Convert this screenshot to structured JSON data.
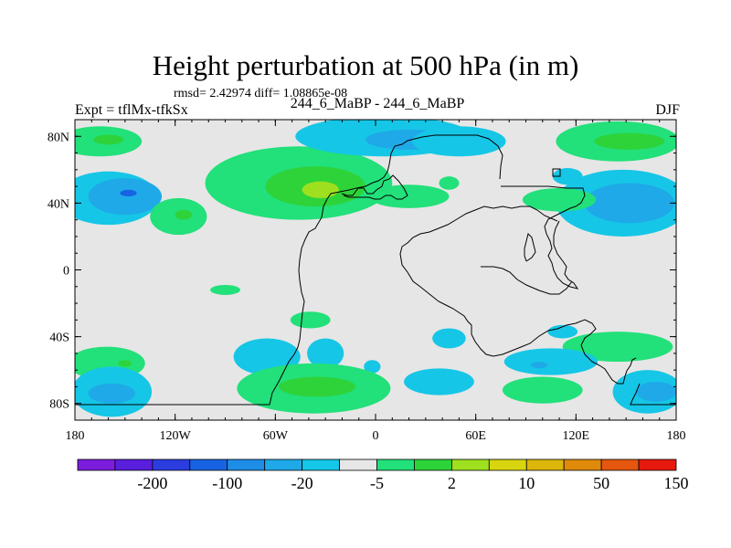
{
  "chart_data": {
    "type": "heatmap",
    "title": "Height perturbation at 500 hPa (in m)",
    "stats": "rmsd= 2.42974 diff= 1.08865e-08",
    "left_label": "Expt = tflMx-tfkSx",
    "center_label": "244_6_MaBP - 244_6_MaBP",
    "right_label": "DJF",
    "x_range": [
      -180,
      180
    ],
    "y_range": [
      -90,
      90
    ],
    "x_ticks": [
      {
        "value": -180,
        "label": "180"
      },
      {
        "value": -120,
        "label": "120W"
      },
      {
        "value": -60,
        "label": "60W"
      },
      {
        "value": 0,
        "label": "0"
      },
      {
        "value": 60,
        "label": "60E"
      },
      {
        "value": 120,
        "label": "120E"
      },
      {
        "value": 180,
        "label": "180"
      }
    ],
    "y_ticks": [
      {
        "value": 80,
        "label": "80N"
      },
      {
        "value": 40,
        "label": "40N"
      },
      {
        "value": 0,
        "label": "0"
      },
      {
        "value": -40,
        "label": "40S"
      },
      {
        "value": -80,
        "label": "80S"
      }
    ],
    "colorbar": {
      "colors": [
        "#7c1cdc",
        "#5a1edd",
        "#2b3ddf",
        "#1863e3",
        "#1e8de6",
        "#1fa9e8",
        "#16c6e6",
        "#e6e6e6",
        "#22e07a",
        "#2ed33a",
        "#9ee01e",
        "#d8d510",
        "#dcb60a",
        "#e08a0b",
        "#e5560e",
        "#e6190f"
      ],
      "labels": [
        {
          "after_index": 1,
          "text": "-200"
        },
        {
          "after_index": 3,
          "text": "-100"
        },
        {
          "after_index": 5,
          "text": "-20"
        },
        {
          "after_index": 7,
          "text": "-5"
        },
        {
          "after_index": 9,
          "text": "2"
        },
        {
          "after_index": 11,
          "text": "10"
        },
        {
          "after_index": 13,
          "text": "50"
        },
        {
          "after_index": 15,
          "text": "150"
        }
      ]
    },
    "perturbation_cells": [
      {
        "lon": -165,
        "lat": 77,
        "rx": 25,
        "ry": 9,
        "bin": 8
      },
      {
        "lon": -160,
        "lat": 78,
        "rx": 9,
        "ry": 3,
        "bin": 9
      },
      {
        "lon": -160,
        "lat": 43,
        "rx": 30,
        "ry": 16,
        "bin": 6
      },
      {
        "lon": -150,
        "lat": 44,
        "rx": 22,
        "ry": 11,
        "bin": 5
      },
      {
        "lon": -148,
        "lat": 46,
        "rx": 5,
        "ry": 2,
        "bin": 3
      },
      {
        "lon": -118,
        "lat": 32,
        "rx": 17,
        "ry": 11,
        "bin": 8
      },
      {
        "lon": -115,
        "lat": 33,
        "rx": 5,
        "ry": 3,
        "bin": 9
      },
      {
        "lon": -46,
        "lat": 52,
        "rx": 56,
        "ry": 22,
        "bin": 8
      },
      {
        "lon": -36,
        "lat": 50,
        "rx": 30,
        "ry": 12,
        "bin": 9
      },
      {
        "lon": -33,
        "lat": 48,
        "rx": 11,
        "ry": 5,
        "bin": 10
      },
      {
        "lon": 5,
        "lat": 80,
        "rx": 53,
        "ry": 12,
        "bin": 6
      },
      {
        "lon": 20,
        "lat": 78,
        "rx": 26,
        "ry": 6,
        "bin": 5
      },
      {
        "lon": 50,
        "lat": 77,
        "rx": 28,
        "ry": 9,
        "bin": 6
      },
      {
        "lon": 20,
        "lat": 44,
        "rx": 24,
        "ry": 7,
        "bin": 8
      },
      {
        "lon": 44,
        "lat": 52,
        "rx": 6,
        "ry": 4,
        "bin": 8
      },
      {
        "lon": 145,
        "lat": 77,
        "rx": 37,
        "ry": 12,
        "bin": 8
      },
      {
        "lon": 152,
        "lat": 77,
        "rx": 21,
        "ry": 5,
        "bin": 9
      },
      {
        "lon": 115,
        "lat": 56,
        "rx": 9,
        "ry": 5,
        "bin": 6
      },
      {
        "lon": 148,
        "lat": 40,
        "rx": 40,
        "ry": 20,
        "bin": 6
      },
      {
        "lon": 152,
        "lat": 40,
        "rx": 27,
        "ry": 12,
        "bin": 5
      },
      {
        "lon": 110,
        "lat": 42,
        "rx": 22,
        "ry": 7,
        "bin": 8
      },
      {
        "lon": -161,
        "lat": -56,
        "rx": 23,
        "ry": 10,
        "bin": 8
      },
      {
        "lon": -150,
        "lat": -56,
        "rx": 4,
        "ry": 2,
        "bin": 9
      },
      {
        "lon": -90,
        "lat": -12,
        "rx": 9,
        "ry": 3,
        "bin": 8
      },
      {
        "lon": -65,
        "lat": -52,
        "rx": 20,
        "ry": 11,
        "bin": 6
      },
      {
        "lon": -39,
        "lat": -30,
        "rx": 12,
        "ry": 5,
        "bin": 8
      },
      {
        "lon": -30,
        "lat": -50,
        "rx": 11,
        "ry": 9,
        "bin": 6
      },
      {
        "lon": -2,
        "lat": -58,
        "rx": 5,
        "ry": 4,
        "bin": 6
      },
      {
        "lon": -37,
        "lat": -71,
        "rx": 46,
        "ry": 15,
        "bin": 8
      },
      {
        "lon": -35,
        "lat": -70,
        "rx": 23,
        "ry": 6,
        "bin": 9
      },
      {
        "lon": -158,
        "lat": -73,
        "rx": 24,
        "ry": 15,
        "bin": 6
      },
      {
        "lon": -158,
        "lat": -74,
        "rx": 14,
        "ry": 6,
        "bin": 5
      },
      {
        "lon": 38,
        "lat": -67,
        "rx": 21,
        "ry": 8,
        "bin": 6
      },
      {
        "lon": 44,
        "lat": -41,
        "rx": 10,
        "ry": 6,
        "bin": 6
      },
      {
        "lon": 112,
        "lat": -37,
        "rx": 9,
        "ry": 4,
        "bin": 6
      },
      {
        "lon": 100,
        "lat": -72,
        "rx": 24,
        "ry": 8,
        "bin": 8
      },
      {
        "lon": 145,
        "lat": -46,
        "rx": 33,
        "ry": 9,
        "bin": 8
      },
      {
        "lon": 105,
        "lat": -55,
        "rx": 28,
        "ry": 8,
        "bin": 6
      },
      {
        "lon": 98,
        "lat": -57,
        "rx": 5,
        "ry": 2,
        "bin": 5
      },
      {
        "lon": 163,
        "lat": -73,
        "rx": 21,
        "ry": 13,
        "bin": 6
      },
      {
        "lon": 168,
        "lat": -73,
        "rx": 12,
        "ry": 6,
        "bin": 5
      }
    ]
  }
}
